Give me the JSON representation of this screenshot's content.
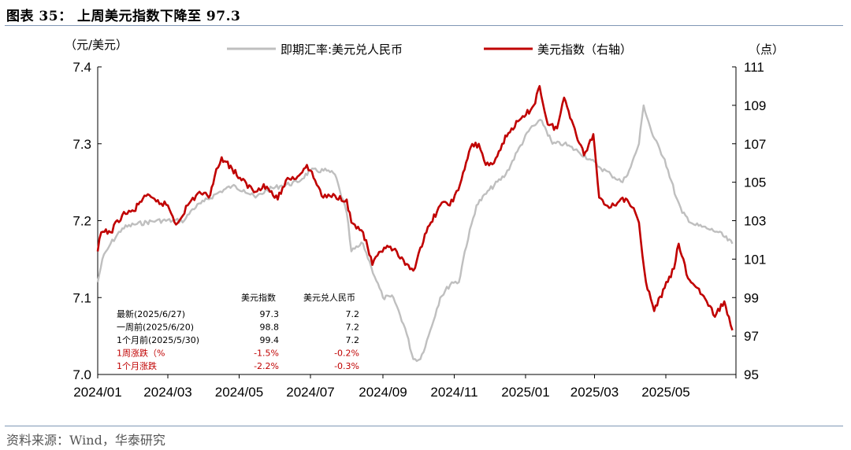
{
  "header": {
    "title": "图表 35：  上周美元指数下降至 97.3"
  },
  "footer": {
    "source": "资料来源：Wind，华泰研究"
  },
  "chart_data": {
    "type": "line",
    "left_unit": "（元/美元）",
    "right_unit": "（点）",
    "left_axis": {
      "min": 7.0,
      "max": 7.4,
      "ticks": [
        "7.4",
        "7.3",
        "7.2",
        "7.1",
        "7.0"
      ]
    },
    "right_axis": {
      "min": 95,
      "max": 111,
      "ticks": [
        "111",
        "109",
        "107",
        "105",
        "103",
        "101",
        "99",
        "97",
        "95"
      ]
    },
    "x_ticks": [
      "2024/01",
      "2024/03",
      "2024/05",
      "2024/07",
      "2024/09",
      "2024/11",
      "2025/01",
      "2025/03",
      "2025/05"
    ],
    "legend_position": "top",
    "series": [
      {
        "name": "即期汇率:美元兑人民币",
        "axis": "left",
        "color": "#bfbfbf",
        "points": [
          [
            "2024-01-01",
            7.12
          ],
          [
            "2024-01-05",
            7.15
          ],
          [
            "2024-01-12",
            7.17
          ],
          [
            "2024-01-22",
            7.19
          ],
          [
            "2024-02-01",
            7.195
          ],
          [
            "2024-02-20",
            7.2
          ],
          [
            "2024-03-05",
            7.2
          ],
          [
            "2024-03-15",
            7.2
          ],
          [
            "2024-03-22",
            7.215
          ],
          [
            "2024-04-01",
            7.225
          ],
          [
            "2024-04-15",
            7.238
          ],
          [
            "2024-04-25",
            7.245
          ],
          [
            "2024-05-05",
            7.24
          ],
          [
            "2024-05-15",
            7.23
          ],
          [
            "2024-05-25",
            7.24
          ],
          [
            "2024-06-05",
            7.245
          ],
          [
            "2024-06-20",
            7.25
          ],
          [
            "2024-07-01",
            7.265
          ],
          [
            "2024-07-15",
            7.265
          ],
          [
            "2024-07-22",
            7.26
          ],
          [
            "2024-07-26",
            7.24
          ],
          [
            "2024-08-01",
            7.21
          ],
          [
            "2024-08-05",
            7.16
          ],
          [
            "2024-08-15",
            7.17
          ],
          [
            "2024-08-22",
            7.14
          ],
          [
            "2024-09-01",
            7.1
          ],
          [
            "2024-09-10",
            7.1
          ],
          [
            "2024-09-20",
            7.06
          ],
          [
            "2024-09-27",
            7.02
          ],
          [
            "2024-10-03",
            7.02
          ],
          [
            "2024-10-10",
            7.05
          ],
          [
            "2024-10-20",
            7.1
          ],
          [
            "2024-10-30",
            7.12
          ],
          [
            "2024-11-05",
            7.12
          ],
          [
            "2024-11-10",
            7.16
          ],
          [
            "2024-11-20",
            7.22
          ],
          [
            "2024-12-01",
            7.24
          ],
          [
            "2024-12-15",
            7.26
          ],
          [
            "2024-12-25",
            7.29
          ],
          [
            "2025-01-05",
            7.32
          ],
          [
            "2025-01-15",
            7.33
          ],
          [
            "2025-01-24",
            7.3
          ],
          [
            "2025-02-03",
            7.3
          ],
          [
            "2025-02-15",
            7.29
          ],
          [
            "2025-02-25",
            7.28
          ],
          [
            "2025-03-05",
            7.27
          ],
          [
            "2025-03-15",
            7.26
          ],
          [
            "2025-03-25",
            7.25
          ],
          [
            "2025-04-01",
            7.27
          ],
          [
            "2025-04-08",
            7.3
          ],
          [
            "2025-04-12",
            7.35
          ],
          [
            "2025-04-20",
            7.31
          ],
          [
            "2025-04-30",
            7.28
          ],
          [
            "2025-05-10",
            7.23
          ],
          [
            "2025-05-15",
            7.21
          ],
          [
            "2025-05-25",
            7.195
          ],
          [
            "2025-06-05",
            7.19
          ],
          [
            "2025-06-15",
            7.185
          ],
          [
            "2025-06-27",
            7.17
          ]
        ]
      },
      {
        "name": "美元指数（右轴）",
        "axis": "right",
        "color": "#c00000",
        "points": [
          [
            "2024-01-01",
            101.4
          ],
          [
            "2024-01-04",
            102.4
          ],
          [
            "2024-01-12",
            102.4
          ],
          [
            "2024-01-22",
            103.3
          ],
          [
            "2024-02-01",
            103.5
          ],
          [
            "2024-02-10",
            104.3
          ],
          [
            "2024-02-20",
            104.0
          ],
          [
            "2024-03-01",
            103.8
          ],
          [
            "2024-03-08",
            102.8
          ],
          [
            "2024-03-18",
            103.8
          ],
          [
            "2024-03-28",
            104.5
          ],
          [
            "2024-04-05",
            104.2
          ],
          [
            "2024-04-10",
            105.3
          ],
          [
            "2024-04-16",
            106.3
          ],
          [
            "2024-04-25",
            105.7
          ],
          [
            "2024-05-03",
            105.1
          ],
          [
            "2024-05-15",
            104.5
          ],
          [
            "2024-05-22",
            104.9
          ],
          [
            "2024-06-03",
            104.1
          ],
          [
            "2024-06-10",
            105.1
          ],
          [
            "2024-06-20",
            105.3
          ],
          [
            "2024-06-28",
            105.9
          ],
          [
            "2024-07-05",
            105.1
          ],
          [
            "2024-07-12",
            104.2
          ],
          [
            "2024-07-22",
            104.3
          ],
          [
            "2024-08-01",
            104.1
          ],
          [
            "2024-08-05",
            102.9
          ],
          [
            "2024-08-15",
            102.4
          ],
          [
            "2024-08-23",
            100.7
          ],
          [
            "2024-09-02",
            101.6
          ],
          [
            "2024-09-10",
            101.5
          ],
          [
            "2024-09-20",
            100.7
          ],
          [
            "2024-09-27",
            100.4
          ],
          [
            "2024-10-03",
            101.6
          ],
          [
            "2024-10-12",
            102.9
          ],
          [
            "2024-10-20",
            103.8
          ],
          [
            "2024-10-31",
            104.0
          ],
          [
            "2024-11-06",
            104.9
          ],
          [
            "2024-11-15",
            106.8
          ],
          [
            "2024-11-22",
            107.0
          ],
          [
            "2024-11-28",
            105.9
          ],
          [
            "2024-12-05",
            106.0
          ],
          [
            "2024-12-12",
            107.0
          ],
          [
            "2024-12-20",
            107.8
          ],
          [
            "2024-12-31",
            108.4
          ],
          [
            "2025-01-08",
            109.0
          ],
          [
            "2025-01-13",
            110.0
          ],
          [
            "2025-01-20",
            108.0
          ],
          [
            "2025-01-28",
            107.8
          ],
          [
            "2025-02-03",
            109.4
          ],
          [
            "2025-02-12",
            107.8
          ],
          [
            "2025-02-20",
            106.4
          ],
          [
            "2025-02-28",
            107.5
          ],
          [
            "2025-03-05",
            104.2
          ],
          [
            "2025-03-15",
            103.7
          ],
          [
            "2025-03-25",
            104.2
          ],
          [
            "2025-04-02",
            103.7
          ],
          [
            "2025-04-08",
            102.9
          ],
          [
            "2025-04-14",
            99.8
          ],
          [
            "2025-04-21",
            98.3
          ],
          [
            "2025-04-30",
            99.5
          ],
          [
            "2025-05-08",
            100.5
          ],
          [
            "2025-05-12",
            101.8
          ],
          [
            "2025-05-20",
            100.0
          ],
          [
            "2025-05-28",
            99.5
          ],
          [
            "2025-06-05",
            98.8
          ],
          [
            "2025-06-12",
            98.0
          ],
          [
            "2025-06-20",
            98.8
          ],
          [
            "2025-06-24",
            98.0
          ],
          [
            "2025-06-27",
            97.3
          ]
        ]
      }
    ],
    "table": {
      "headers": [
        "美元指数",
        "美元兑人民币"
      ],
      "rows": [
        {
          "label": "最新(2025/6/27)",
          "values": [
            "97.3",
            "7.2"
          ],
          "highlight": false
        },
        {
          "label": "一周前(2025/6/20)",
          "values": [
            "98.8",
            "7.2"
          ],
          "highlight": false
        },
        {
          "label": "1个月前(2025/5/30)",
          "values": [
            "99.4",
            "7.2"
          ],
          "highlight": false
        },
        {
          "label": "1周涨跌（%",
          "values": [
            "-1.5%",
            "-0.2%"
          ],
          "highlight": true
        },
        {
          "label": "1个月涨跌",
          "values": [
            "-2.2%",
            "-0.3%"
          ],
          "highlight": true
        }
      ]
    }
  }
}
